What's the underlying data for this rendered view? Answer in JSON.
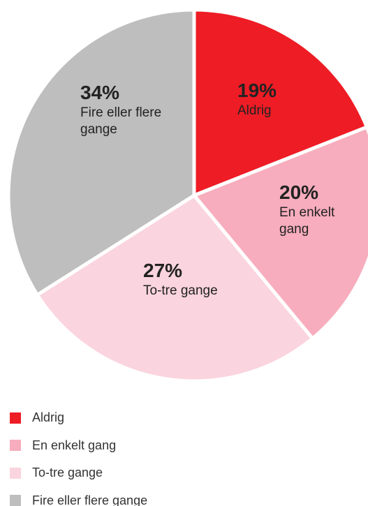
{
  "chart_data": {
    "type": "pie",
    "categories": [
      "Aldrig",
      "En enkelt gang",
      "To-tre gange",
      "Fire eller flere gange"
    ],
    "values": [
      19,
      20,
      27,
      34
    ],
    "value_labels": [
      "19%",
      "20%",
      "27%",
      "34%"
    ],
    "colors": [
      "#ee1c25",
      "#f7adbd",
      "#fad4de",
      "#bfbebf"
    ],
    "legend": "bottom-left"
  }
}
